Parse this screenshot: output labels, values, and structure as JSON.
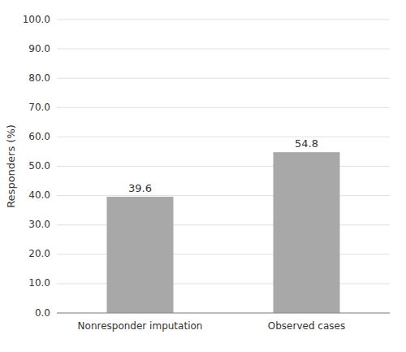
{
  "chart_data": {
    "type": "bar",
    "categories": [
      "Nonresponder imputation",
      "Observed cases"
    ],
    "values": [
      39.6,
      54.8
    ],
    "color": "#a8a8a8",
    "ylabel": "Responders (%)",
    "ylim": [
      0,
      100
    ],
    "yticks": [
      {
        "value": 0.0,
        "label": "0.0"
      },
      {
        "value": 10.0,
        "label": "10.0"
      },
      {
        "value": 20.0,
        "label": "20.0"
      },
      {
        "value": 30.0,
        "label": "30.0"
      },
      {
        "value": 40.0,
        "label": "40.0"
      },
      {
        "value": 50.0,
        "label": "50.0"
      },
      {
        "value": 60.0,
        "label": "60.0"
      },
      {
        "value": 70.0,
        "label": "70.0"
      },
      {
        "value": 80.0,
        "label": "80.0"
      },
      {
        "value": 90.0,
        "label": "90.0"
      },
      {
        "value": 100.0,
        "label": "100.0"
      }
    ],
    "grid": true,
    "data_labels": true
  }
}
